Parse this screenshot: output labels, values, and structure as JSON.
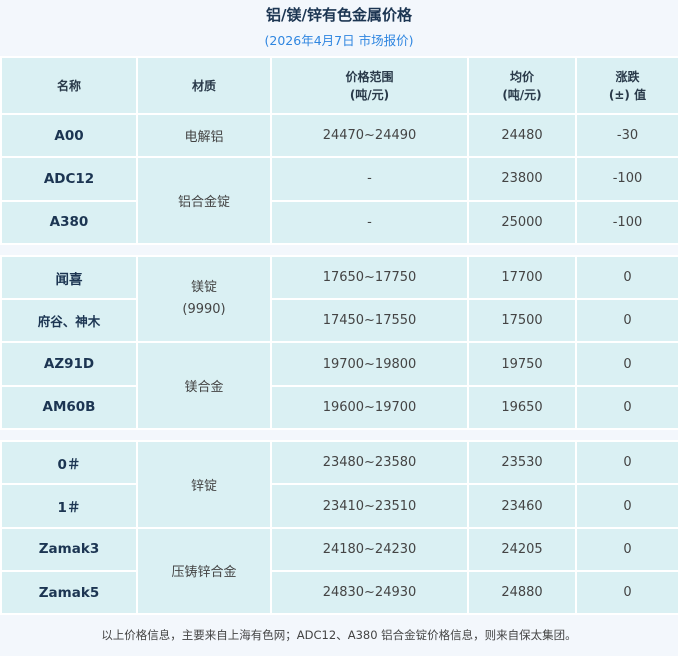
{
  "title": "铝/镁/锌有色金属价格",
  "subtitle": "(2026年4月7日 市场报价)",
  "headers": {
    "name": "名称",
    "material": "材质",
    "range": "价格范围",
    "range_unit": "(吨/元)",
    "avg": "均价",
    "avg_unit": "(吨/元)",
    "change": "涨跌",
    "change_unit": "(±) 值"
  },
  "groups": [
    {
      "rows": [
        {
          "name": "A00",
          "range": "24470~24490",
          "avg": "24480",
          "change": "-30"
        },
        {
          "name": "ADC12",
          "range": "-",
          "avg": "23800",
          "change": "-100"
        },
        {
          "name": "A380",
          "range": "-",
          "avg": "25000",
          "change": "-100"
        }
      ],
      "materials": [
        "电解铝",
        "铝合金锭"
      ]
    },
    {
      "rows": [
        {
          "name": "闻喜",
          "range": "17650~17750",
          "avg": "17700",
          "change": "0"
        },
        {
          "name": "府谷、神木",
          "range": "17450~17550",
          "avg": "17500",
          "change": "0"
        },
        {
          "name": "AZ91D",
          "range": "19700~19800",
          "avg": "19750",
          "change": "0"
        },
        {
          "name": "AM60B",
          "range": "19600~19700",
          "avg": "19650",
          "change": "0"
        }
      ],
      "materials": [
        "镁锭",
        "(9990)",
        "镁合金"
      ]
    },
    {
      "rows": [
        {
          "name": "0＃",
          "range": "23480~23580",
          "avg": "23530",
          "change": "0"
        },
        {
          "name": "1＃",
          "range": "23410~23510",
          "avg": "23460",
          "change": "0"
        },
        {
          "name": "Zamak3",
          "range": "24180~24230",
          "avg": "24205",
          "change": "0"
        },
        {
          "name": "Zamak5",
          "range": "24830~24930",
          "avg": "24880",
          "change": "0"
        }
      ],
      "materials": [
        "锌锭",
        "压铸锌合金"
      ]
    }
  ],
  "footer": "以上价格信息，主要来自上海有色网；ADC12、A380 铝合金锭价格信息，则来自保太集团。"
}
